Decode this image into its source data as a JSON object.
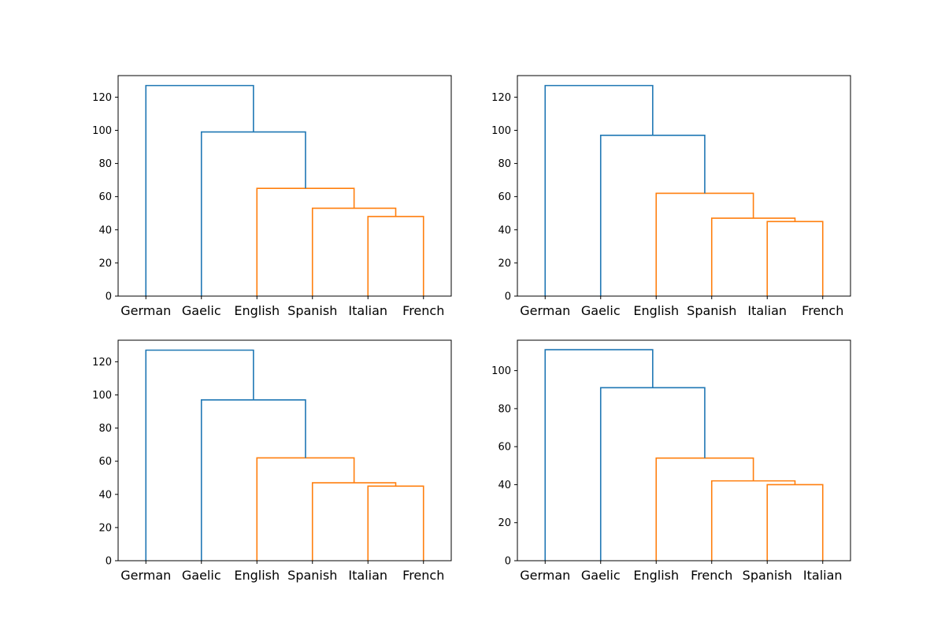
{
  "chart_data": [
    {
      "type": "dendrogram",
      "labels": [
        "German",
        "Gaelic",
        "English",
        "Spanish",
        "Italian",
        "French"
      ],
      "ylim": [
        0,
        133
      ],
      "yticks": [
        "0",
        "20",
        "40",
        "60",
        "80",
        "100",
        "120"
      ],
      "ytick_values": [
        0,
        20,
        40,
        60,
        80,
        100,
        120
      ],
      "links": [
        {
          "x": [
            4,
            5
          ],
          "height": 48,
          "child_heights": [
            0,
            0
          ],
          "color": "orange"
        },
        {
          "x": [
            3,
            4.5
          ],
          "height": 53,
          "child_heights": [
            0,
            48
          ],
          "color": "orange"
        },
        {
          "x": [
            2,
            3.75
          ],
          "height": 65,
          "child_heights": [
            0,
            53
          ],
          "color": "orange"
        },
        {
          "x": [
            1,
            2.875
          ],
          "height": 99,
          "child_heights": [
            0,
            65
          ],
          "color": "blue"
        },
        {
          "x": [
            0,
            1.9375
          ],
          "height": 127,
          "child_heights": [
            0,
            99
          ],
          "color": "blue"
        }
      ]
    },
    {
      "type": "dendrogram",
      "labels": [
        "German",
        "Gaelic",
        "English",
        "Spanish",
        "Italian",
        "French"
      ],
      "ylim": [
        0,
        133
      ],
      "yticks": [
        "0",
        "20",
        "40",
        "60",
        "80",
        "100",
        "120"
      ],
      "ytick_values": [
        0,
        20,
        40,
        60,
        80,
        100,
        120
      ],
      "links": [
        {
          "x": [
            4,
            5
          ],
          "height": 45,
          "child_heights": [
            0,
            0
          ],
          "color": "orange"
        },
        {
          "x": [
            3,
            4.5
          ],
          "height": 47,
          "child_heights": [
            0,
            45
          ],
          "color": "orange"
        },
        {
          "x": [
            2,
            3.75
          ],
          "height": 62,
          "child_heights": [
            0,
            47
          ],
          "color": "orange"
        },
        {
          "x": [
            1,
            2.875
          ],
          "height": 97,
          "child_heights": [
            0,
            62
          ],
          "color": "blue"
        },
        {
          "x": [
            0,
            1.9375
          ],
          "height": 127,
          "child_heights": [
            0,
            97
          ],
          "color": "blue"
        }
      ]
    },
    {
      "type": "dendrogram",
      "labels": [
        "German",
        "Gaelic",
        "English",
        "Spanish",
        "Italian",
        "French"
      ],
      "ylim": [
        0,
        133
      ],
      "yticks": [
        "0",
        "20",
        "40",
        "60",
        "80",
        "100",
        "120"
      ],
      "ytick_values": [
        0,
        20,
        40,
        60,
        80,
        100,
        120
      ],
      "links": [
        {
          "x": [
            4,
            5
          ],
          "height": 45,
          "child_heights": [
            0,
            0
          ],
          "color": "orange"
        },
        {
          "x": [
            3,
            4.5
          ],
          "height": 47,
          "child_heights": [
            0,
            45
          ],
          "color": "orange"
        },
        {
          "x": [
            2,
            3.75
          ],
          "height": 62,
          "child_heights": [
            0,
            47
          ],
          "color": "orange"
        },
        {
          "x": [
            1,
            2.875
          ],
          "height": 97,
          "child_heights": [
            0,
            62
          ],
          "color": "blue"
        },
        {
          "x": [
            0,
            1.9375
          ],
          "height": 127,
          "child_heights": [
            0,
            97
          ],
          "color": "blue"
        }
      ]
    },
    {
      "type": "dendrogram",
      "labels": [
        "German",
        "Gaelic",
        "English",
        "French",
        "Spanish",
        "Italian"
      ],
      "ylim": [
        0,
        116
      ],
      "yticks": [
        "0",
        "20",
        "40",
        "60",
        "80",
        "100"
      ],
      "ytick_values": [
        0,
        20,
        40,
        60,
        80,
        100
      ],
      "links": [
        {
          "x": [
            4,
            5
          ],
          "height": 40,
          "child_heights": [
            0,
            0
          ],
          "color": "orange"
        },
        {
          "x": [
            3,
            4.5
          ],
          "height": 42,
          "child_heights": [
            0,
            40
          ],
          "color": "orange"
        },
        {
          "x": [
            2,
            3.75
          ],
          "height": 54,
          "child_heights": [
            0,
            42
          ],
          "color": "orange"
        },
        {
          "x": [
            1,
            2.875
          ],
          "height": 91,
          "child_heights": [
            0,
            54
          ],
          "color": "blue"
        },
        {
          "x": [
            0,
            1.9375
          ],
          "height": 111,
          "child_heights": [
            0,
            91
          ],
          "color": "blue"
        }
      ]
    }
  ],
  "colors": {
    "blue": "#1f77b4",
    "orange": "#ff7f0e"
  }
}
